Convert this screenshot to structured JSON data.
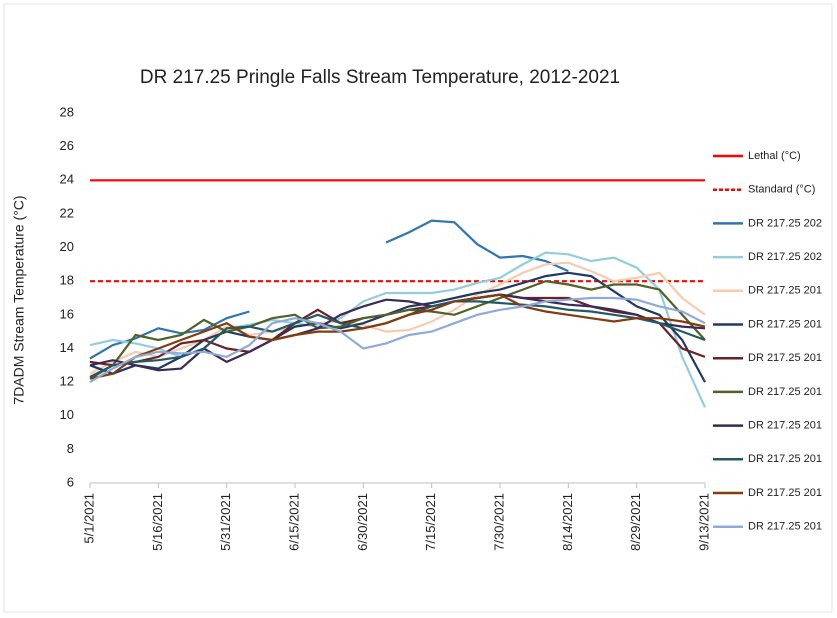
{
  "chart_data": {
    "type": "line",
    "title": "DR 217.25 Pringle Falls Stream Temperature, 2012-2021",
    "y_label": "7DADM Stream Temperature (°C)",
    "x": [
      "5/1/2021",
      "5/6/2021",
      "5/11/2021",
      "5/16/2021",
      "5/21/2021",
      "5/26/2021",
      "5/31/2021",
      "6/5/2021",
      "6/10/2021",
      "6/15/2021",
      "6/20/2021",
      "6/25/2021",
      "6/30/2021",
      "7/5/2021",
      "7/10/2021",
      "7/15/2021",
      "7/20/2021",
      "7/25/2021",
      "7/30/2021",
      "8/4/2021",
      "8/9/2021",
      "8/14/2021",
      "8/19/2021",
      "8/24/2021",
      "8/29/2021",
      "9/3/2021",
      "9/8/2021",
      "9/13/2021"
    ],
    "xlim": [
      "5/1/2021",
      "9/13/2021"
    ],
    "xticks": [
      "5/1/2021",
      "5/16/2021",
      "5/31/2021",
      "6/15/2021",
      "6/30/2021",
      "7/15/2021",
      "7/30/2021",
      "8/14/2021",
      "8/29/2021",
      "9/13/2021"
    ],
    "ylim": [
      6,
      28
    ],
    "yticks": [
      6,
      8,
      10,
      12,
      14,
      16,
      18,
      20,
      22,
      24,
      26,
      28
    ],
    "series": [
      {
        "name": "Lethal (°C)",
        "color": "#ff0000",
        "line_style": "solid",
        "values": [
          24,
          24,
          24,
          24,
          24,
          24,
          24,
          24,
          24,
          24,
          24,
          24,
          24,
          24,
          24,
          24,
          24,
          24,
          24,
          24,
          24,
          24,
          24,
          24,
          24,
          24,
          24,
          24
        ]
      },
      {
        "name": "Standard (°C)",
        "color": "#ff0000",
        "line_style": "dashed",
        "values": [
          18,
          18,
          18,
          18,
          18,
          18,
          18,
          18,
          18,
          18,
          18,
          18,
          18,
          18,
          18,
          18,
          18,
          18,
          18,
          18,
          18,
          18,
          18,
          18,
          18,
          18,
          18,
          18
        ]
      },
      {
        "name": "DR 217.25 202",
        "color": "#2e75b6",
        "line_style": "solid",
        "values": [
          13.4,
          14.2,
          14.6,
          15.2,
          14.9,
          15.1,
          15.8,
          16.2,
          null,
          null,
          null,
          null,
          null,
          20.3,
          20.9,
          21.6,
          21.5,
          20.2,
          19.4,
          19.5,
          19.2,
          18.6,
          null,
          null,
          null,
          null,
          null,
          null
        ]
      },
      {
        "name": "DR 217.25 202",
        "color": "#92cddc",
        "line_style": "solid",
        "values": [
          14.2,
          14.5,
          14.3,
          14.0,
          13.5,
          14.0,
          15.2,
          15.4,
          15.7,
          15.5,
          15.3,
          15.8,
          16.8,
          17.3,
          17.3,
          17.3,
          17.5,
          17.9,
          18.2,
          19.0,
          19.7,
          19.6,
          19.2,
          19.4,
          18.8,
          17.5,
          13.5,
          10.5
        ]
      },
      {
        "name": "DR 217.25 201",
        "color": "#f8cbad",
        "line_style": "solid",
        "values": [
          12.5,
          13.2,
          13.8,
          13.5,
          14.0,
          14.5,
          15.3,
          14.8,
          15.0,
          15.3,
          15.5,
          15.6,
          15.4,
          15.0,
          15.1,
          15.6,
          16.3,
          17.2,
          17.8,
          18.5,
          19.0,
          19.1,
          18.6,
          18.0,
          18.2,
          18.5,
          17.0,
          16.0
        ]
      },
      {
        "name": "DR 217.25 201",
        "color": "#203864",
        "line_style": "solid",
        "values": [
          13.0,
          12.5,
          13.0,
          12.8,
          13.5,
          14.5,
          15.0,
          14.7,
          14.5,
          15.3,
          15.5,
          15.2,
          15.5,
          16.0,
          16.5,
          16.7,
          17.0,
          17.3,
          17.5,
          17.9,
          18.3,
          18.5,
          18.3,
          17.4,
          16.5,
          16.0,
          14.5,
          12.0
        ]
      },
      {
        "name": "DR 217.25 201",
        "color": "#6b2222",
        "line_style": "solid",
        "values": [
          13.2,
          13.0,
          13.2,
          13.5,
          14.3,
          14.5,
          14.0,
          13.8,
          14.5,
          15.5,
          16.3,
          15.5,
          15.8,
          16.0,
          16.3,
          16.5,
          16.8,
          17.0,
          17.2,
          17.0,
          17.0,
          17.0,
          16.5,
          16.2,
          16.0,
          15.5,
          14.0,
          13.5
        ]
      },
      {
        "name": "DR 217.25 201",
        "color": "#4f6228",
        "line_style": "solid",
        "values": [
          12.2,
          13.0,
          14.8,
          14.5,
          14.8,
          15.7,
          15.0,
          15.3,
          15.8,
          16.0,
          15.2,
          15.3,
          15.8,
          16.0,
          16.3,
          16.2,
          16.0,
          16.5,
          17.0,
          17.5,
          18.0,
          17.8,
          17.5,
          17.8,
          17.8,
          17.5,
          16.0,
          14.5
        ]
      },
      {
        "name": "DR 217.25 201",
        "color": "#3b2a58",
        "line_style": "solid",
        "values": [
          13.0,
          13.3,
          13.0,
          12.7,
          12.8,
          14.0,
          13.2,
          13.8,
          14.5,
          14.8,
          15.2,
          16.0,
          16.5,
          16.9,
          16.8,
          16.5,
          16.8,
          17.0,
          17.2,
          17.0,
          16.8,
          16.6,
          16.5,
          16.3,
          16.0,
          15.5,
          15.3,
          15.2
        ]
      },
      {
        "name": "DR 217.25 201",
        "color": "#215967",
        "line_style": "solid",
        "values": [
          12.3,
          13.0,
          13.2,
          13.3,
          13.5,
          14.0,
          15.2,
          15.3,
          15.0,
          15.5,
          16.0,
          15.5,
          15.2,
          15.5,
          16.0,
          16.5,
          16.8,
          16.8,
          16.7,
          16.6,
          16.5,
          16.3,
          16.2,
          16.0,
          15.8,
          15.5,
          15.0,
          14.5
        ]
      },
      {
        "name": "DR 217.25 201",
        "color": "#843c0c",
        "line_style": "solid",
        "values": [
          12.2,
          12.5,
          13.5,
          14.0,
          14.5,
          15.0,
          15.5,
          14.7,
          14.5,
          14.8,
          15.0,
          15.0,
          15.2,
          15.5,
          16.0,
          16.3,
          16.8,
          17.0,
          17.2,
          16.5,
          16.2,
          16.0,
          15.8,
          15.6,
          15.8,
          15.8,
          15.6,
          15.3
        ]
      },
      {
        "name": "DR 217.25 201",
        "color": "#8eaadb",
        "line_style": "solid",
        "values": [
          12.0,
          12.8,
          13.5,
          13.8,
          13.7,
          13.8,
          13.5,
          14.2,
          15.5,
          15.8,
          15.5,
          15.0,
          14.0,
          14.3,
          14.8,
          15.0,
          15.5,
          16.0,
          16.3,
          16.5,
          16.8,
          16.9,
          17.0,
          17.0,
          16.9,
          16.5,
          16.2,
          15.5
        ]
      }
    ]
  }
}
